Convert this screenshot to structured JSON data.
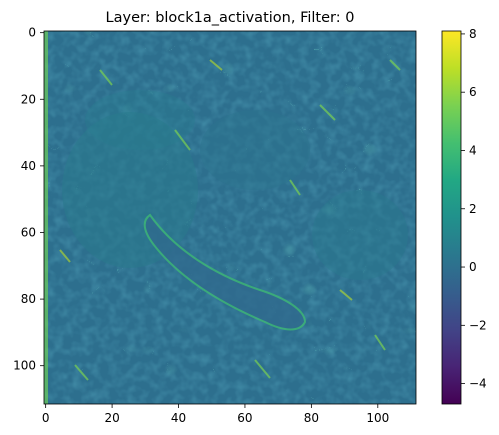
{
  "chart_data": {
    "type": "heatmap",
    "title": "Layer: block1a_activation, Filter: 0",
    "xlabel": "",
    "ylabel": "",
    "grid": false,
    "colormap": "viridis",
    "image_size": [
      112,
      112
    ],
    "xlim": [
      -0.5,
      111.5
    ],
    "ylim": [
      111.5,
      -0.5
    ],
    "x_ticks": [
      0,
      20,
      40,
      60,
      80,
      100
    ],
    "y_ticks": [
      0,
      20,
      40,
      60,
      80,
      100
    ],
    "colorbar": {
      "range": [
        -4.7,
        8.1
      ],
      "ticks": [
        -4,
        -2,
        0,
        2,
        4,
        6,
        8
      ],
      "tick_labels": [
        "−4",
        "−2",
        "0",
        "2",
        "4",
        "6",
        "8"
      ]
    }
  }
}
